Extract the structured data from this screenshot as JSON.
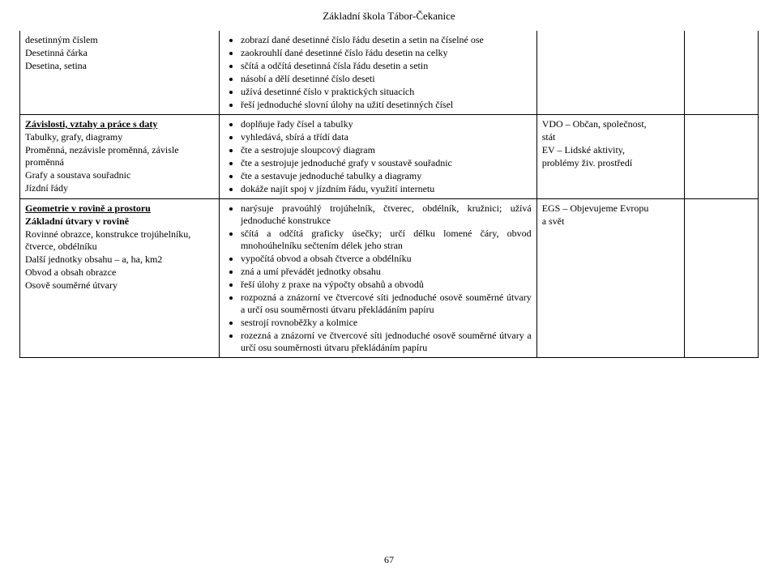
{
  "header": "Základní škola Tábor-Čekanice",
  "page_number": "67",
  "row1": {
    "col1": {
      "lines": [
        "desetinným číslem",
        "Desetinná čárka",
        "Desetina, setina"
      ]
    },
    "col2": {
      "bullets": [
        "zobrazí dané desetinné číslo řádu desetin a setin na číselné ose",
        "zaokrouhlí dané desetinné číslo řádu desetin na celky",
        "sčítá a odčítá desetinná čísla řádu desetin a setin",
        "násobí a dělí desetinné číslo deseti",
        "užívá desetinné číslo v praktických situacích",
        "řeší jednoduché slovní úlohy na užití desetinných čísel"
      ]
    }
  },
  "row2": {
    "col1": {
      "title": "Závislosti, vztahy a práce s daty",
      "lines": [
        "Tabulky, grafy, diagramy",
        "Proměnná, nezávisle proměnná, závisle proměnná",
        "Grafy a soustava souřadnic",
        "Jízdní řády"
      ]
    },
    "col2": {
      "bullets": [
        "doplňuje řady čísel a tabulky",
        "vyhledává, sbírá a třídí data",
        "čte a sestrojuje sloupcový diagram",
        "čte a sestrojuje jednoduché grafy v soustavě souřadnic",
        "čte a sestavuje jednoduché tabulky a diagramy",
        "dokáže najít spoj v jízdním řádu, využití internetu"
      ]
    },
    "col3": {
      "l1": "VDO – Občan, společnost,",
      "l1b": "stát",
      "l2": "EV – Lidské aktivity,",
      "l2b": "problémy živ. prostředí"
    }
  },
  "row3": {
    "col1": {
      "title": "Geometrie v rovině a prostoru",
      "subtitle": "Základní útvary v rovině",
      "lines": [
        "Rovinné obrazce, konstrukce trojúhelníku, čtverce, obdélníku",
        "Další jednotky obsahu – a, ha, km2",
        "Obvod a obsah obrazce",
        "Osově souměrné útvary"
      ]
    },
    "col2": {
      "bullets": [
        "narýsuje pravoúhlý trojúhelník, čtverec, obdélník, kružnici; užívá jednoduché konstrukce",
        "sčítá a odčítá graficky úsečky; určí délku lomené čáry, obvod mnohoúhelníku sečtením délek jeho stran",
        "vypočítá obvod a obsah čtverce a obdélníku",
        "zná a umí převádět jednotky obsahu",
        "řeší úlohy z praxe na výpočty obsahů a obvodů",
        "rozpozná a znázorní ve čtvercové síti jednoduché osově souměrné útvary a určí osu souměrnosti útvaru překládáním papíru",
        "sestrojí rovnoběžky a kolmice",
        "rozezná a znázorní ve čtvercové síti jednoduché osově souměrné útvary a určí osu souměrnosti útvaru překládáním papíru"
      ]
    },
    "col3": {
      "l1": "EGS – Objevujeme Evropu",
      "l1b": "a svět"
    }
  }
}
